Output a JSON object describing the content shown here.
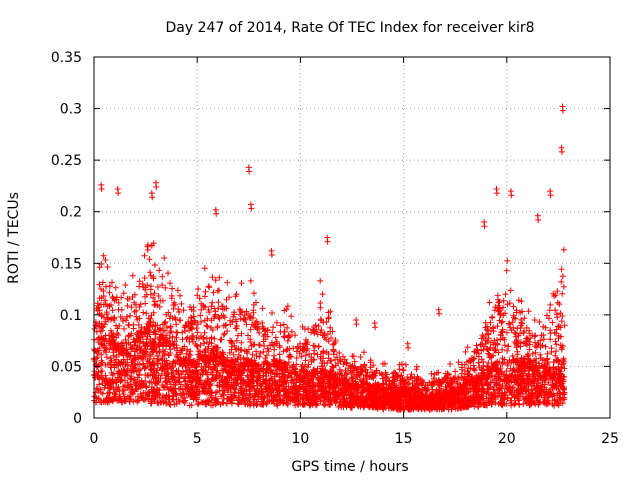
{
  "chart_data": {
    "type": "scatter",
    "title": "Day 247 of 2014, Rate Of TEC Index for receiver kir8",
    "xlabel": "GPS time / hours",
    "ylabel": "ROTI / TECUs",
    "xlim": [
      0,
      25
    ],
    "ylim": [
      0,
      0.35
    ],
    "x_ticks": [
      0,
      5,
      10,
      15,
      20,
      25
    ],
    "y_ticks": [
      0,
      0.05,
      0.1,
      0.15,
      0.2,
      0.25,
      0.3,
      0.35
    ],
    "x_tick_labels": [
      "0",
      "5",
      "10",
      "15",
      "20",
      "25"
    ],
    "y_tick_labels": [
      "0",
      "0.05",
      "0.1",
      "0.15",
      "0.2",
      "0.25",
      "0.3",
      "0.35"
    ],
    "grid": true,
    "marker": "+",
    "color": "#ff0000",
    "x_data_range": [
      0,
      22.8
    ],
    "notable_points": [
      {
        "x": 22.7,
        "y": 0.302
      },
      {
        "x": 22.65,
        "y": 0.262
      },
      {
        "x": 7.5,
        "y": 0.243
      },
      {
        "x": 3.0,
        "y": 0.228
      },
      {
        "x": 0.35,
        "y": 0.226
      },
      {
        "x": 1.15,
        "y": 0.222
      },
      {
        "x": 20.2,
        "y": 0.22
      },
      {
        "x": 22.1,
        "y": 0.22
      },
      {
        "x": 19.5,
        "y": 0.222
      },
      {
        "x": 7.6,
        "y": 0.207
      },
      {
        "x": 5.9,
        "y": 0.202
      },
      {
        "x": 2.8,
        "y": 0.218
      },
      {
        "x": 21.5,
        "y": 0.196
      },
      {
        "x": 18.9,
        "y": 0.19
      },
      {
        "x": 8.6,
        "y": 0.162
      },
      {
        "x": 11.3,
        "y": 0.175
      },
      {
        "x": 12.7,
        "y": 0.095
      },
      {
        "x": 13.6,
        "y": 0.092
      },
      {
        "x": 15.2,
        "y": 0.072
      },
      {
        "x": 16.7,
        "y": 0.105
      }
    ],
    "envelope": {
      "hours": [
        0,
        0.5,
        1,
        1.5,
        2,
        2.5,
        3,
        3.5,
        4,
        4.5,
        5,
        5.5,
        6,
        6.5,
        7,
        7.5,
        8,
        8.5,
        9,
        9.5,
        10,
        10.5,
        11,
        11.5,
        12,
        12.5,
        13,
        13.5,
        14,
        14.5,
        15,
        15.5,
        16,
        16.5,
        17,
        17.5,
        18,
        18.5,
        19,
        19.5,
        20,
        20.5,
        21,
        21.5,
        22,
        22.5,
        22.8
      ],
      "typical": [
        0.06,
        0.07,
        0.07,
        0.06,
        0.07,
        0.08,
        0.08,
        0.07,
        0.06,
        0.05,
        0.05,
        0.06,
        0.06,
        0.05,
        0.05,
        0.05,
        0.045,
        0.05,
        0.05,
        0.045,
        0.04,
        0.04,
        0.045,
        0.04,
        0.035,
        0.03,
        0.03,
        0.03,
        0.025,
        0.025,
        0.025,
        0.025,
        0.02,
        0.02,
        0.025,
        0.025,
        0.03,
        0.035,
        0.04,
        0.05,
        0.05,
        0.05,
        0.05,
        0.045,
        0.045,
        0.05,
        0.05
      ],
      "upper": [
        0.13,
        0.15,
        0.14,
        0.12,
        0.14,
        0.16,
        0.16,
        0.15,
        0.13,
        0.12,
        0.12,
        0.15,
        0.14,
        0.12,
        0.12,
        0.13,
        0.11,
        0.1,
        0.11,
        0.1,
        0.08,
        0.09,
        0.13,
        0.1,
        0.07,
        0.06,
        0.06,
        0.06,
        0.05,
        0.05,
        0.05,
        0.05,
        0.04,
        0.04,
        0.05,
        0.05,
        0.06,
        0.08,
        0.1,
        0.13,
        0.14,
        0.12,
        0.1,
        0.09,
        0.12,
        0.16,
        0.16
      ],
      "floor": [
        0.015,
        0.015,
        0.015,
        0.015,
        0.015,
        0.015,
        0.012,
        0.012,
        0.012,
        0.012,
        0.012,
        0.012,
        0.012,
        0.012,
        0.012,
        0.012,
        0.012,
        0.012,
        0.012,
        0.012,
        0.012,
        0.012,
        0.012,
        0.012,
        0.01,
        0.01,
        0.01,
        0.01,
        0.008,
        0.008,
        0.008,
        0.008,
        0.008,
        0.008,
        0.008,
        0.008,
        0.01,
        0.01,
        0.012,
        0.012,
        0.012,
        0.012,
        0.012,
        0.012,
        0.012,
        0.012,
        0.012
      ]
    }
  }
}
